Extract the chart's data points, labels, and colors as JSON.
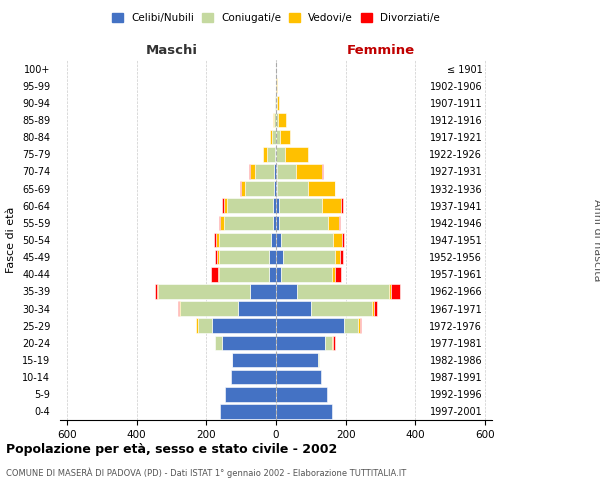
{
  "age_groups": [
    "0-4",
    "5-9",
    "10-14",
    "15-19",
    "20-24",
    "25-29",
    "30-34",
    "35-39",
    "40-44",
    "45-49",
    "50-54",
    "55-59",
    "60-64",
    "65-69",
    "70-74",
    "75-79",
    "80-84",
    "85-89",
    "90-94",
    "95-99",
    "100+"
  ],
  "birth_years": [
    "1997-2001",
    "1992-1996",
    "1987-1991",
    "1982-1986",
    "1977-1981",
    "1972-1976",
    "1967-1971",
    "1962-1966",
    "1957-1961",
    "1952-1956",
    "1947-1951",
    "1942-1946",
    "1937-1941",
    "1932-1936",
    "1927-1931",
    "1922-1926",
    "1917-1921",
    "1912-1916",
    "1907-1911",
    "1902-1906",
    "≤ 1901"
  ],
  "maschi": {
    "celibi": [
      160,
      145,
      130,
      125,
      155,
      185,
      110,
      75,
      20,
      20,
      15,
      10,
      10,
      5,
      5,
      2,
      1,
      1,
      0,
      0,
      0
    ],
    "coniugati": [
      0,
      0,
      0,
      2,
      20,
      40,
      165,
      265,
      145,
      145,
      150,
      140,
      130,
      85,
      55,
      25,
      10,
      5,
      2,
      0,
      0
    ],
    "vedovi": [
      0,
      0,
      0,
      0,
      0,
      5,
      2,
      2,
      2,
      5,
      8,
      10,
      10,
      10,
      15,
      10,
      5,
      2,
      0,
      0,
      0
    ],
    "divorziati": [
      0,
      0,
      0,
      0,
      0,
      0,
      5,
      5,
      20,
      5,
      5,
      5,
      5,
      2,
      2,
      0,
      0,
      0,
      0,
      0,
      0
    ]
  },
  "femmine": {
    "nubili": [
      160,
      145,
      130,
      120,
      140,
      195,
      100,
      60,
      15,
      20,
      15,
      10,
      8,
      3,
      2,
      1,
      1,
      0,
      0,
      0,
      0
    ],
    "coniugate": [
      0,
      0,
      0,
      3,
      20,
      40,
      175,
      265,
      145,
      150,
      150,
      140,
      125,
      90,
      55,
      25,
      10,
      5,
      2,
      0,
      0
    ],
    "vedove": [
      0,
      0,
      0,
      0,
      5,
      5,
      5,
      5,
      8,
      15,
      25,
      30,
      55,
      75,
      75,
      65,
      30,
      25,
      8,
      2,
      0
    ],
    "divorziate": [
      0,
      0,
      0,
      0,
      3,
      5,
      10,
      25,
      20,
      8,
      5,
      5,
      5,
      2,
      2,
      0,
      0,
      0,
      0,
      0,
      0
    ]
  },
  "colors": {
    "celibi": "#4472C4",
    "coniugati": "#C5D9A0",
    "vedovi": "#FFC000",
    "divorziati": "#FF0000"
  },
  "xlim": [
    -620,
    620
  ],
  "xticks": [
    -600,
    -400,
    -200,
    0,
    200,
    400,
    600
  ],
  "xticklabels": [
    "600",
    "400",
    "200",
    "0",
    "200",
    "400",
    "600"
  ],
  "title": "Popolazione per età, sesso e stato civile - 2002",
  "subtitle": "COMUNE DI MASERÀ DI PADOVA (PD) - Dati ISTAT 1° gennaio 2002 - Elaborazione TUTTITALIA.IT",
  "ylabel_left": "Fasce di età",
  "ylabel_right": "Anni di nascita",
  "label_maschi": "Maschi",
  "label_femmine": "Femmine",
  "legend_labels": [
    "Celibi/Nubili",
    "Coniugati/e",
    "Vedovi/e",
    "Divorziati/e"
  ],
  "background_color": "#FFFFFF",
  "grid_color": "#CCCCCC",
  "bar_height": 0.85
}
